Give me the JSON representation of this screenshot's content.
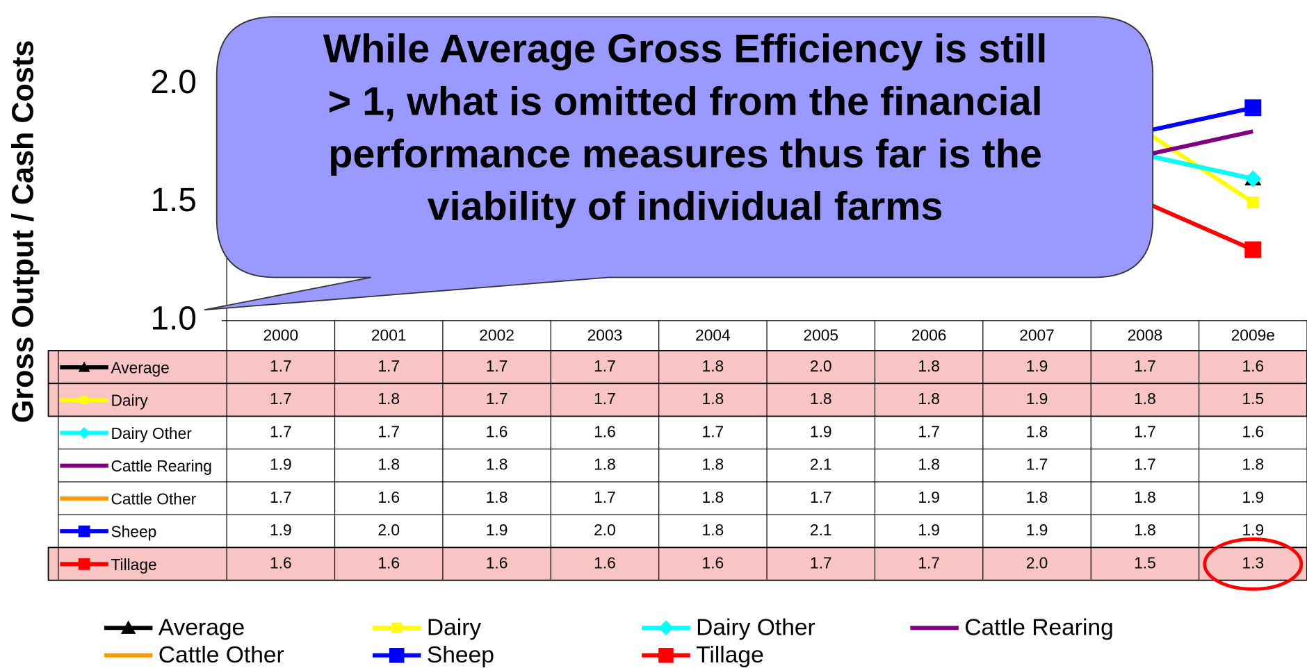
{
  "chart_data": {
    "type": "line",
    "y_label": "Gross Output / Cash Costs",
    "annotation": [
      "While Average Gross Efficiency is still",
      "> 1, what is omitted from the financial",
      "performance measures thus far is the",
      "viability of individual farms"
    ],
    "categories": [
      "2000",
      "2001",
      "2002",
      "2003",
      "2004",
      "2005",
      "2006",
      "2007",
      "2008",
      "2009e"
    ],
    "ylim": [
      1.0,
      2.2
    ],
    "yticks": [
      {
        "value": 1.0,
        "label": "1.0"
      },
      {
        "value": 1.5,
        "label": "1.5"
      },
      {
        "value": 2.0,
        "label": "2.0"
      }
    ],
    "series": [
      {
        "name": "Average",
        "color": "#000000",
        "marker": "triangle",
        "highlight": true,
        "values": [
          1.7,
          1.7,
          1.7,
          1.7,
          1.8,
          2.0,
          1.8,
          1.9,
          1.7,
          1.6
        ],
        "value_labels": [
          "1.7",
          "1.7",
          "1.7",
          "1.7",
          "1.8",
          "2.0",
          "1.8",
          "1.9",
          "1.7",
          "1.6"
        ]
      },
      {
        "name": "Dairy",
        "color": "#ffff00",
        "marker": "square-small",
        "highlight": true,
        "values": [
          1.7,
          1.8,
          1.7,
          1.7,
          1.8,
          1.8,
          1.8,
          1.9,
          1.8,
          1.5
        ],
        "value_labels": [
          "1.7",
          "1.8",
          "1.7",
          "1.7",
          "1.8",
          "1.8",
          "1.8",
          "1.9",
          "1.8",
          "1.5"
        ]
      },
      {
        "name": "Dairy Other",
        "color": "#00ffff",
        "marker": "diamond",
        "highlight": false,
        "values": [
          1.7,
          1.7,
          1.6,
          1.6,
          1.7,
          1.9,
          1.7,
          1.8,
          1.7,
          1.6
        ],
        "value_labels": [
          "1.7",
          "1.7",
          "1.6",
          "1.6",
          "1.7",
          "1.9",
          "1.7",
          "1.8",
          "1.7",
          "1.6"
        ]
      },
      {
        "name": "Cattle Rearing",
        "color": "#800080",
        "marker": "none",
        "highlight": false,
        "values": [
          1.9,
          1.8,
          1.8,
          1.8,
          1.8,
          2.1,
          1.8,
          1.7,
          1.7,
          1.8
        ],
        "value_labels": [
          "1.9",
          "1.8",
          "1.8",
          "1.8",
          "1.8",
          "2.1",
          "1.8",
          "1.7",
          "1.7",
          "1.8"
        ]
      },
      {
        "name": "Cattle Other",
        "color": "#ff9900",
        "marker": "none",
        "highlight": false,
        "values": [
          1.7,
          1.6,
          1.8,
          1.7,
          1.8,
          1.7,
          1.9,
          1.8,
          1.8,
          1.9
        ],
        "value_labels": [
          "1.7",
          "1.6",
          "1.8",
          "1.7",
          "1.8",
          "1.7",
          "1.9",
          "1.8",
          "1.8",
          "1.9"
        ]
      },
      {
        "name": "Sheep",
        "color": "#0000ff",
        "marker": "square",
        "highlight": false,
        "values": [
          1.9,
          2.0,
          1.9,
          2.0,
          1.8,
          2.1,
          1.9,
          1.9,
          1.8,
          1.9
        ],
        "value_labels": [
          "1.9",
          "2.0",
          "1.9",
          "2.0",
          "1.8",
          "2.1",
          "1.9",
          "1.9",
          "1.8",
          "1.9"
        ]
      },
      {
        "name": "Tillage",
        "color": "#ff0000",
        "marker": "square",
        "highlight": true,
        "values": [
          1.6,
          1.6,
          1.6,
          1.6,
          1.6,
          1.7,
          1.7,
          2.0,
          1.5,
          1.3
        ],
        "value_labels": [
          "1.6",
          "1.6",
          "1.6",
          "1.6",
          "1.6",
          "1.7",
          "1.7",
          "2.0",
          "1.5",
          "1.3"
        ]
      }
    ]
  }
}
